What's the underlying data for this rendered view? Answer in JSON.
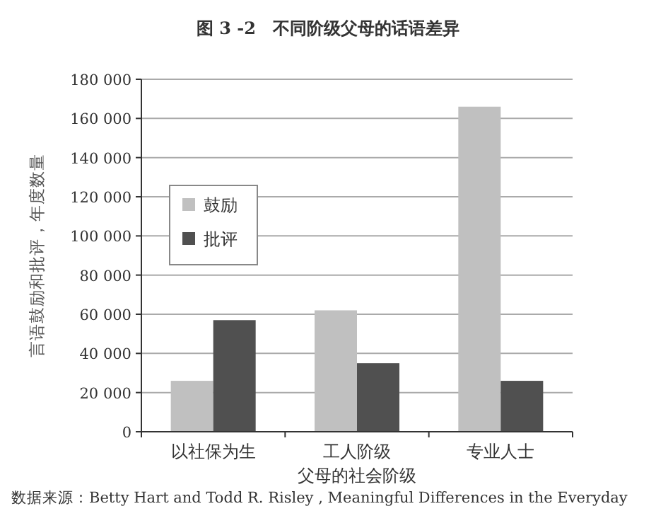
{
  "chart_data": {
    "type": "bar",
    "title": "图 3 -2　不同阶级父母的话语差异",
    "xlabel": "父母的社会阶级",
    "ylabel": "言语鼓励和批评，年度数量",
    "categories": [
      "以社保为生",
      "工人阶级",
      "专业人士"
    ],
    "series": [
      {
        "name": "鼓励",
        "color": "#c0c0c0",
        "values": [
          26000,
          62000,
          166000
        ]
      },
      {
        "name": "批评",
        "color": "#505050",
        "values": [
          57000,
          35000,
          26000
        ]
      }
    ],
    "ylim": [
      0,
      180000
    ],
    "yticks": [
      {
        "value": 0,
        "label": "0"
      },
      {
        "value": 20000,
        "label": "20 000"
      },
      {
        "value": 40000,
        "label": "40 000"
      },
      {
        "value": 60000,
        "label": "60 000"
      },
      {
        "value": 80000,
        "label": "80 000"
      },
      {
        "value": 100000,
        "label": "100 000"
      },
      {
        "value": 120000,
        "label": "120 000"
      },
      {
        "value": 140000,
        "label": "140 000"
      },
      {
        "value": 160000,
        "label": "160 000"
      },
      {
        "value": 180000,
        "label": "180 000"
      }
    ],
    "grid": "y",
    "legend": "top left",
    "annotations": [
      "数据来源：Betty Hart and Todd R. Risley , Meaningful Differences in the Everyday"
    ]
  }
}
